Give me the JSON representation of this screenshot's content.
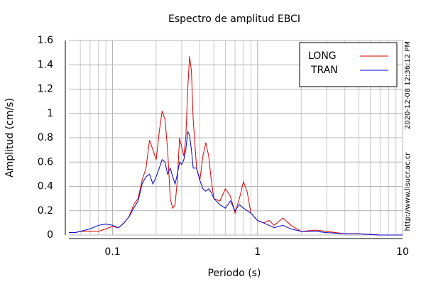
{
  "chart_data": {
    "type": "line",
    "title": "Espectro de amplitud EBCI",
    "xlabel": "Periodo (s)",
    "ylabel": "Amplitud (cm/s)",
    "annotations": [
      "2020-12-08 12:36:12 PM",
      "http://www.lisucr.ac.cr"
    ],
    "xscale": "log",
    "grid": true,
    "legend_loc": "upper right",
    "xlim": [
      0.05,
      10
    ],
    "ylim": [
      0,
      1.6
    ],
    "xticks": [
      0.1,
      1,
      10
    ],
    "xminor": [
      0.06,
      0.07,
      0.08,
      0.09,
      0.2,
      0.3,
      0.4,
      0.5,
      0.6,
      0.7,
      0.8,
      0.9,
      2,
      3,
      4,
      5,
      6,
      7,
      8,
      9
    ],
    "yticks": [
      0,
      0.2,
      0.4,
      0.6,
      0.8,
      1,
      1.2,
      1.4,
      1.6
    ],
    "x": [
      0.05,
      0.055,
      0.06,
      0.07,
      0.08,
      0.09,
      0.1,
      0.11,
      0.12,
      0.13,
      0.14,
      0.15,
      0.16,
      0.17,
      0.18,
      0.19,
      0.2,
      0.21,
      0.22,
      0.23,
      0.24,
      0.25,
      0.26,
      0.27,
      0.28,
      0.29,
      0.3,
      0.31,
      0.32,
      0.33,
      0.34,
      0.35,
      0.36,
      0.38,
      0.4,
      0.42,
      0.44,
      0.46,
      0.48,
      0.5,
      0.55,
      0.6,
      0.65,
      0.7,
      0.75,
      0.8,
      0.85,
      0.9,
      1.0,
      1.1,
      1.2,
      1.3,
      1.5,
      1.7,
      2.0,
      2.5,
      3.0,
      4.0,
      5.0,
      7.0,
      10
    ],
    "series": [
      {
        "name": "LONG",
        "color": "#dd0000",
        "values": [
          0.02,
          0.02,
          0.03,
          0.03,
          0.03,
          0.05,
          0.07,
          0.06,
          0.1,
          0.15,
          0.25,
          0.3,
          0.45,
          0.55,
          0.78,
          0.7,
          0.62,
          0.85,
          1.02,
          0.95,
          0.7,
          0.3,
          0.22,
          0.25,
          0.45,
          0.8,
          0.72,
          0.65,
          0.8,
          1.2,
          1.47,
          1.35,
          0.95,
          0.55,
          0.45,
          0.65,
          0.76,
          0.65,
          0.45,
          0.3,
          0.28,
          0.38,
          0.32,
          0.18,
          0.3,
          0.44,
          0.35,
          0.18,
          0.12,
          0.1,
          0.12,
          0.08,
          0.14,
          0.08,
          0.03,
          0.04,
          0.03,
          0.01,
          0.01,
          0,
          0
        ]
      },
      {
        "name": "TRAN",
        "color": "#0000cc",
        "values": [
          0.02,
          0.02,
          0.03,
          0.05,
          0.08,
          0.09,
          0.08,
          0.06,
          0.1,
          0.15,
          0.22,
          0.28,
          0.42,
          0.48,
          0.5,
          0.42,
          0.48,
          0.55,
          0.62,
          0.6,
          0.5,
          0.55,
          0.48,
          0.42,
          0.5,
          0.6,
          0.58,
          0.62,
          0.7,
          0.85,
          0.82,
          0.7,
          0.55,
          0.55,
          0.45,
          0.38,
          0.36,
          0.38,
          0.35,
          0.3,
          0.25,
          0.22,
          0.28,
          0.2,
          0.25,
          0.22,
          0.2,
          0.18,
          0.12,
          0.1,
          0.08,
          0.06,
          0.08,
          0.05,
          0.03,
          0.03,
          0.02,
          0.01,
          0.01,
          0,
          0
        ]
      }
    ]
  }
}
